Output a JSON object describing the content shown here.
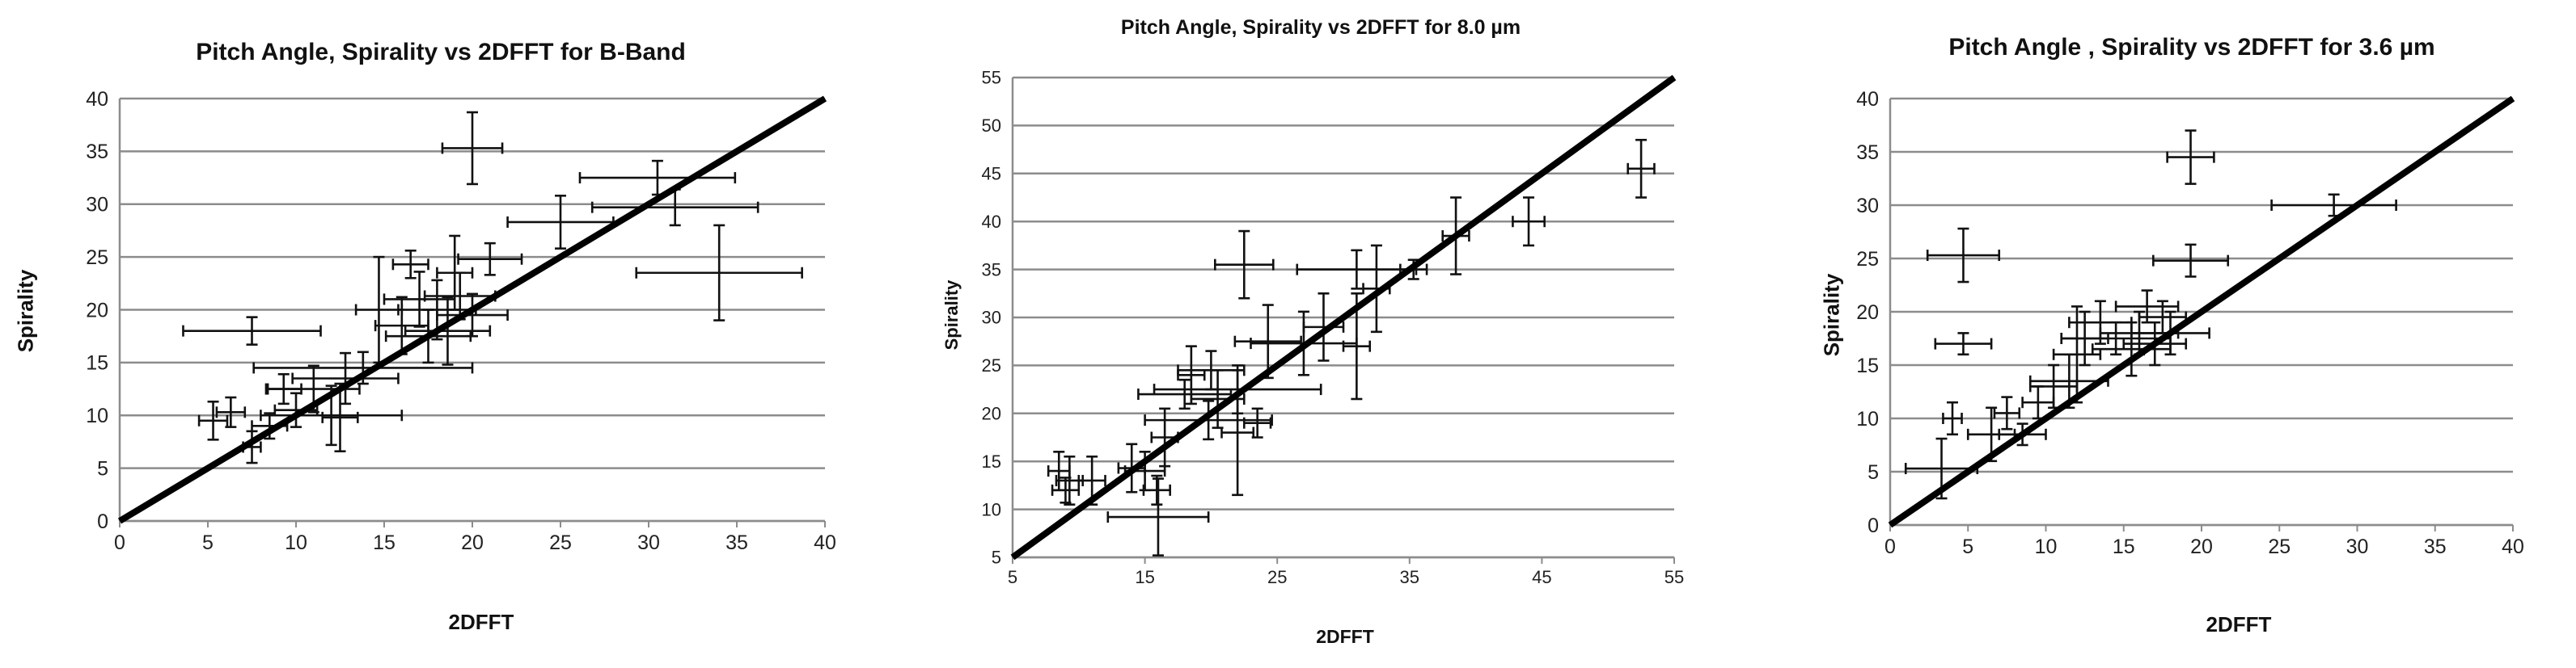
{
  "chart_data": [
    {
      "type": "scatter",
      "title": "Pitch Angle, Spirality  vs 2DFFT for B-Band",
      "xlabel": "2DFFT",
      "ylabel": "Spirality",
      "xlim": [
        0,
        40
      ],
      "ylim": [
        0,
        40
      ],
      "xticks": [
        "0",
        "5",
        "10",
        "15",
        "20",
        "25",
        "30",
        "35",
        "40"
      ],
      "yticks": [
        "0",
        "5",
        "10",
        "15",
        "20",
        "25",
        "30",
        "35",
        "40"
      ],
      "grid": "horizontal",
      "legend": "none",
      "reference_line": {
        "from": [
          0,
          0
        ],
        "to": [
          40,
          40
        ]
      },
      "series": [
        {
          "points": [
            {
              "x": 20,
              "y": 35.3,
              "xerr": 1.7,
              "yerr": 3.4
            },
            {
              "x": 34,
              "y": 23.5,
              "xerr": 4.7,
              "yerr": 4.5
            },
            {
              "x": 30.5,
              "y": 32.5,
              "xerr": 4.4,
              "yerr": 1.6
            },
            {
              "x": 31.5,
              "y": 29.7,
              "xerr": 4.7,
              "yerr": 1.7
            },
            {
              "x": 25,
              "y": 28.3,
              "xerr": 3.0,
              "yerr": 2.5
            },
            {
              "x": 7.5,
              "y": 18,
              "xerr": 3.9,
              "yerr": 1.3
            },
            {
              "x": 5.3,
              "y": 9.5,
              "xerr": 0.8,
              "yerr": 1.8
            },
            {
              "x": 6.3,
              "y": 10.3,
              "xerr": 0.8,
              "yerr": 1.4
            },
            {
              "x": 7.5,
              "y": 7.0,
              "xerr": 0.5,
              "yerr": 1.5
            },
            {
              "x": 8.5,
              "y": 9.0,
              "xerr": 1.0,
              "yerr": 1.2
            },
            {
              "x": 9.3,
              "y": 12.5,
              "xerr": 1.0,
              "yerr": 1.4
            },
            {
              "x": 10.0,
              "y": 10.5,
              "xerr": 1.2,
              "yerr": 1.6
            },
            {
              "x": 11.0,
              "y": 12.5,
              "xerr": 2.6,
              "yerr": 2.2
            },
            {
              "x": 12.0,
              "y": 10.0,
              "xerr": 4.0,
              "yerr": 2.8
            },
            {
              "x": 12.5,
              "y": 9.8,
              "xerr": 1.0,
              "yerr": 3.2
            },
            {
              "x": 12.8,
              "y": 13.5,
              "xerr": 3.0,
              "yerr": 2.4
            },
            {
              "x": 13.8,
              "y": 14.5,
              "xerr": 6.2,
              "yerr": 1.5
            },
            {
              "x": 14.7,
              "y": 20.0,
              "xerr": 1.3,
              "yerr": 5.0
            },
            {
              "x": 16.0,
              "y": 18.5,
              "xerr": 1.5,
              "yerr": 2.7
            },
            {
              "x": 17.0,
              "y": 21.0,
              "xerr": 2.0,
              "yerr": 2.6
            },
            {
              "x": 17.5,
              "y": 17.5,
              "xerr": 2.4,
              "yerr": 2.5
            },
            {
              "x": 18.0,
              "y": 20.0,
              "xerr": 2.2,
              "yerr": 2.8
            },
            {
              "x": 18.6,
              "y": 18.0,
              "xerr": 2.4,
              "yerr": 3.2
            },
            {
              "x": 19.3,
              "y": 21.3,
              "xerr": 2.0,
              "yerr": 2.2
            },
            {
              "x": 19.0,
              "y": 23.5,
              "xerr": 1.0,
              "yerr": 3.5
            },
            {
              "x": 21.0,
              "y": 24.8,
              "xerr": 1.8,
              "yerr": 1.5
            },
            {
              "x": 20.0,
              "y": 19.5,
              "xerr": 2.0,
              "yerr": 2.0
            },
            {
              "x": 16.5,
              "y": 24.3,
              "xerr": 1.0,
              "yerr": 1.3
            }
          ]
        }
      ]
    },
    {
      "type": "scatter",
      "title": "Pitch Angle, Spirality  vs 2DFFT for 8.0 µm",
      "xlabel": "2DFFT",
      "ylabel": "Spirality",
      "xlim": [
        5,
        55
      ],
      "ylim": [
        5,
        55
      ],
      "xticks": [
        "5",
        "15",
        "25",
        "35",
        "45",
        "55"
      ],
      "yticks": [
        "5",
        "10",
        "15",
        "20",
        "25",
        "30",
        "35",
        "40",
        "45",
        "50",
        "55"
      ],
      "grid": "horizontal",
      "legend": "none",
      "reference_line": {
        "from": [
          5,
          5
        ],
        "to": [
          55,
          55
        ]
      },
      "series": [
        {
          "points": [
            {
              "x": 52.5,
              "y": 45.5,
              "xerr": 1.0,
              "yerr": 3.0
            },
            {
              "x": 44,
              "y": 40,
              "xerr": 1.2,
              "yerr": 2.5
            },
            {
              "x": 38.5,
              "y": 38.5,
              "xerr": 1.0,
              "yerr": 4.0
            },
            {
              "x": 35.3,
              "y": 35.0,
              "xerr": 1.0,
              "yerr": 1.0
            },
            {
              "x": 32.5,
              "y": 33.0,
              "xerr": 1.0,
              "yerr": 4.5
            },
            {
              "x": 31.0,
              "y": 35.0,
              "xerr": 4.5,
              "yerr": 2.0
            },
            {
              "x": 31.0,
              "y": 27.0,
              "xerr": 1.0,
              "yerr": 5.5
            },
            {
              "x": 28.5,
              "y": 29.0,
              "xerr": 1.5,
              "yerr": 3.5
            },
            {
              "x": 27.0,
              "y": 27.3,
              "xerr": 4.0,
              "yerr": 3.3
            },
            {
              "x": 22.5,
              "y": 35.5,
              "xerr": 2.2,
              "yerr": 3.5
            },
            {
              "x": 24.3,
              "y": 27.5,
              "xerr": 2.5,
              "yerr": 3.8
            },
            {
              "x": 22.0,
              "y": 22.5,
              "xerr": 6.3,
              "yerr": 2.5
            },
            {
              "x": 22.0,
              "y": 18.0,
              "xerr": 1.2,
              "yerr": 6.5
            },
            {
              "x": 23.5,
              "y": 19.0,
              "xerr": 1.0,
              "yerr": 1.5
            },
            {
              "x": 20.5,
              "y": 21.5,
              "xerr": 2.0,
              "yerr": 3.0
            },
            {
              "x": 19.8,
              "y": 19.3,
              "xerr": 4.8,
              "yerr": 2.0
            },
            {
              "x": 20.0,
              "y": 24.5,
              "xerr": 2.5,
              "yerr": 2.0
            },
            {
              "x": 18.5,
              "y": 24.0,
              "xerr": 1.0,
              "yerr": 3.0
            },
            {
              "x": 18.0,
              "y": 22.0,
              "xerr": 3.5,
              "yerr": 1.5
            },
            {
              "x": 16.5,
              "y": 17.5,
              "xerr": 1.0,
              "yerr": 3.0
            },
            {
              "x": 15.0,
              "y": 14.0,
              "xerr": 1.5,
              "yerr": 2.0
            },
            {
              "x": 15.9,
              "y": 12.0,
              "xerr": 1.0,
              "yerr": 1.5
            },
            {
              "x": 16.0,
              "y": 9.2,
              "xerr": 3.8,
              "yerr": 4.0
            },
            {
              "x": 14.0,
              "y": 14.3,
              "xerr": 1.0,
              "yerr": 2.5
            },
            {
              "x": 11.0,
              "y": 13.0,
              "xerr": 1.0,
              "yerr": 2.5
            },
            {
              "x": 9.3,
              "y": 13.0,
              "xerr": 1.0,
              "yerr": 2.5
            },
            {
              "x": 8.5,
              "y": 14.0,
              "xerr": 0.8,
              "yerr": 2.0
            },
            {
              "x": 9.0,
              "y": 12.0,
              "xerr": 1.0,
              "yerr": 1.3
            }
          ]
        }
      ]
    },
    {
      "type": "scatter",
      "title": "Pitch Angle , Spirality  vs 2DFFT for 3.6 µm",
      "xlabel": "2DFFT",
      "ylabel": "Spirality",
      "xlim": [
        0,
        40
      ],
      "ylim": [
        0,
        40
      ],
      "xticks": [
        "0",
        "5",
        "10",
        "15",
        "20",
        "25",
        "30",
        "35",
        "40"
      ],
      "yticks": [
        "0",
        "5",
        "10",
        "15",
        "20",
        "25",
        "30",
        "35",
        "40"
      ],
      "grid": "horizontal",
      "legend": "none",
      "reference_line": {
        "from": [
          0,
          0
        ],
        "to": [
          40,
          40
        ]
      },
      "series": [
        {
          "points": [
            {
              "x": 19.3,
              "y": 34.5,
              "xerr": 1.5,
              "yerr": 2.5
            },
            {
              "x": 28.5,
              "y": 30.0,
              "xerr": 4.0,
              "yerr": 1.0
            },
            {
              "x": 19.3,
              "y": 24.8,
              "xerr": 2.4,
              "yerr": 1.5
            },
            {
              "x": 4.7,
              "y": 25.3,
              "xerr": 2.3,
              "yerr": 2.5
            },
            {
              "x": 4.7,
              "y": 17.0,
              "xerr": 1.8,
              "yerr": 1.0
            },
            {
              "x": 3.3,
              "y": 5.3,
              "xerr": 2.3,
              "yerr": 2.8
            },
            {
              "x": 4.0,
              "y": 10.0,
              "xerr": 0.6,
              "yerr": 1.5
            },
            {
              "x": 6.5,
              "y": 8.5,
              "xerr": 1.5,
              "yerr": 2.5
            },
            {
              "x": 7.5,
              "y": 10.5,
              "xerr": 0.8,
              "yerr": 1.5
            },
            {
              "x": 8.5,
              "y": 8.5,
              "xerr": 1.5,
              "yerr": 1.0
            },
            {
              "x": 9.5,
              "y": 11.5,
              "xerr": 1.0,
              "yerr": 1.5
            },
            {
              "x": 10.5,
              "y": 13.0,
              "xerr": 1.5,
              "yerr": 2.0
            },
            {
              "x": 11.5,
              "y": 13.5,
              "xerr": 2.5,
              "yerr": 2.5
            },
            {
              "x": 12.0,
              "y": 16.0,
              "xerr": 1.5,
              "yerr": 4.5
            },
            {
              "x": 12.5,
              "y": 17.5,
              "xerr": 1.5,
              "yerr": 2.5
            },
            {
              "x": 13.5,
              "y": 19.0,
              "xerr": 2.0,
              "yerr": 2.0
            },
            {
              "x": 14.5,
              "y": 17.5,
              "xerr": 3.5,
              "yerr": 1.5
            },
            {
              "x": 15.5,
              "y": 16.5,
              "xerr": 2.5,
              "yerr": 2.5
            },
            {
              "x": 16.0,
              "y": 18.0,
              "xerr": 2.5,
              "yerr": 2.0
            },
            {
              "x": 16.5,
              "y": 20.5,
              "xerr": 2.0,
              "yerr": 1.5
            },
            {
              "x": 17.0,
              "y": 17.0,
              "xerr": 2.0,
              "yerr": 2.0
            },
            {
              "x": 17.5,
              "y": 19.5,
              "xerr": 1.5,
              "yerr": 1.5
            },
            {
              "x": 18.0,
              "y": 18.0,
              "xerr": 2.5,
              "yerr": 2.0
            }
          ]
        }
      ]
    }
  ]
}
